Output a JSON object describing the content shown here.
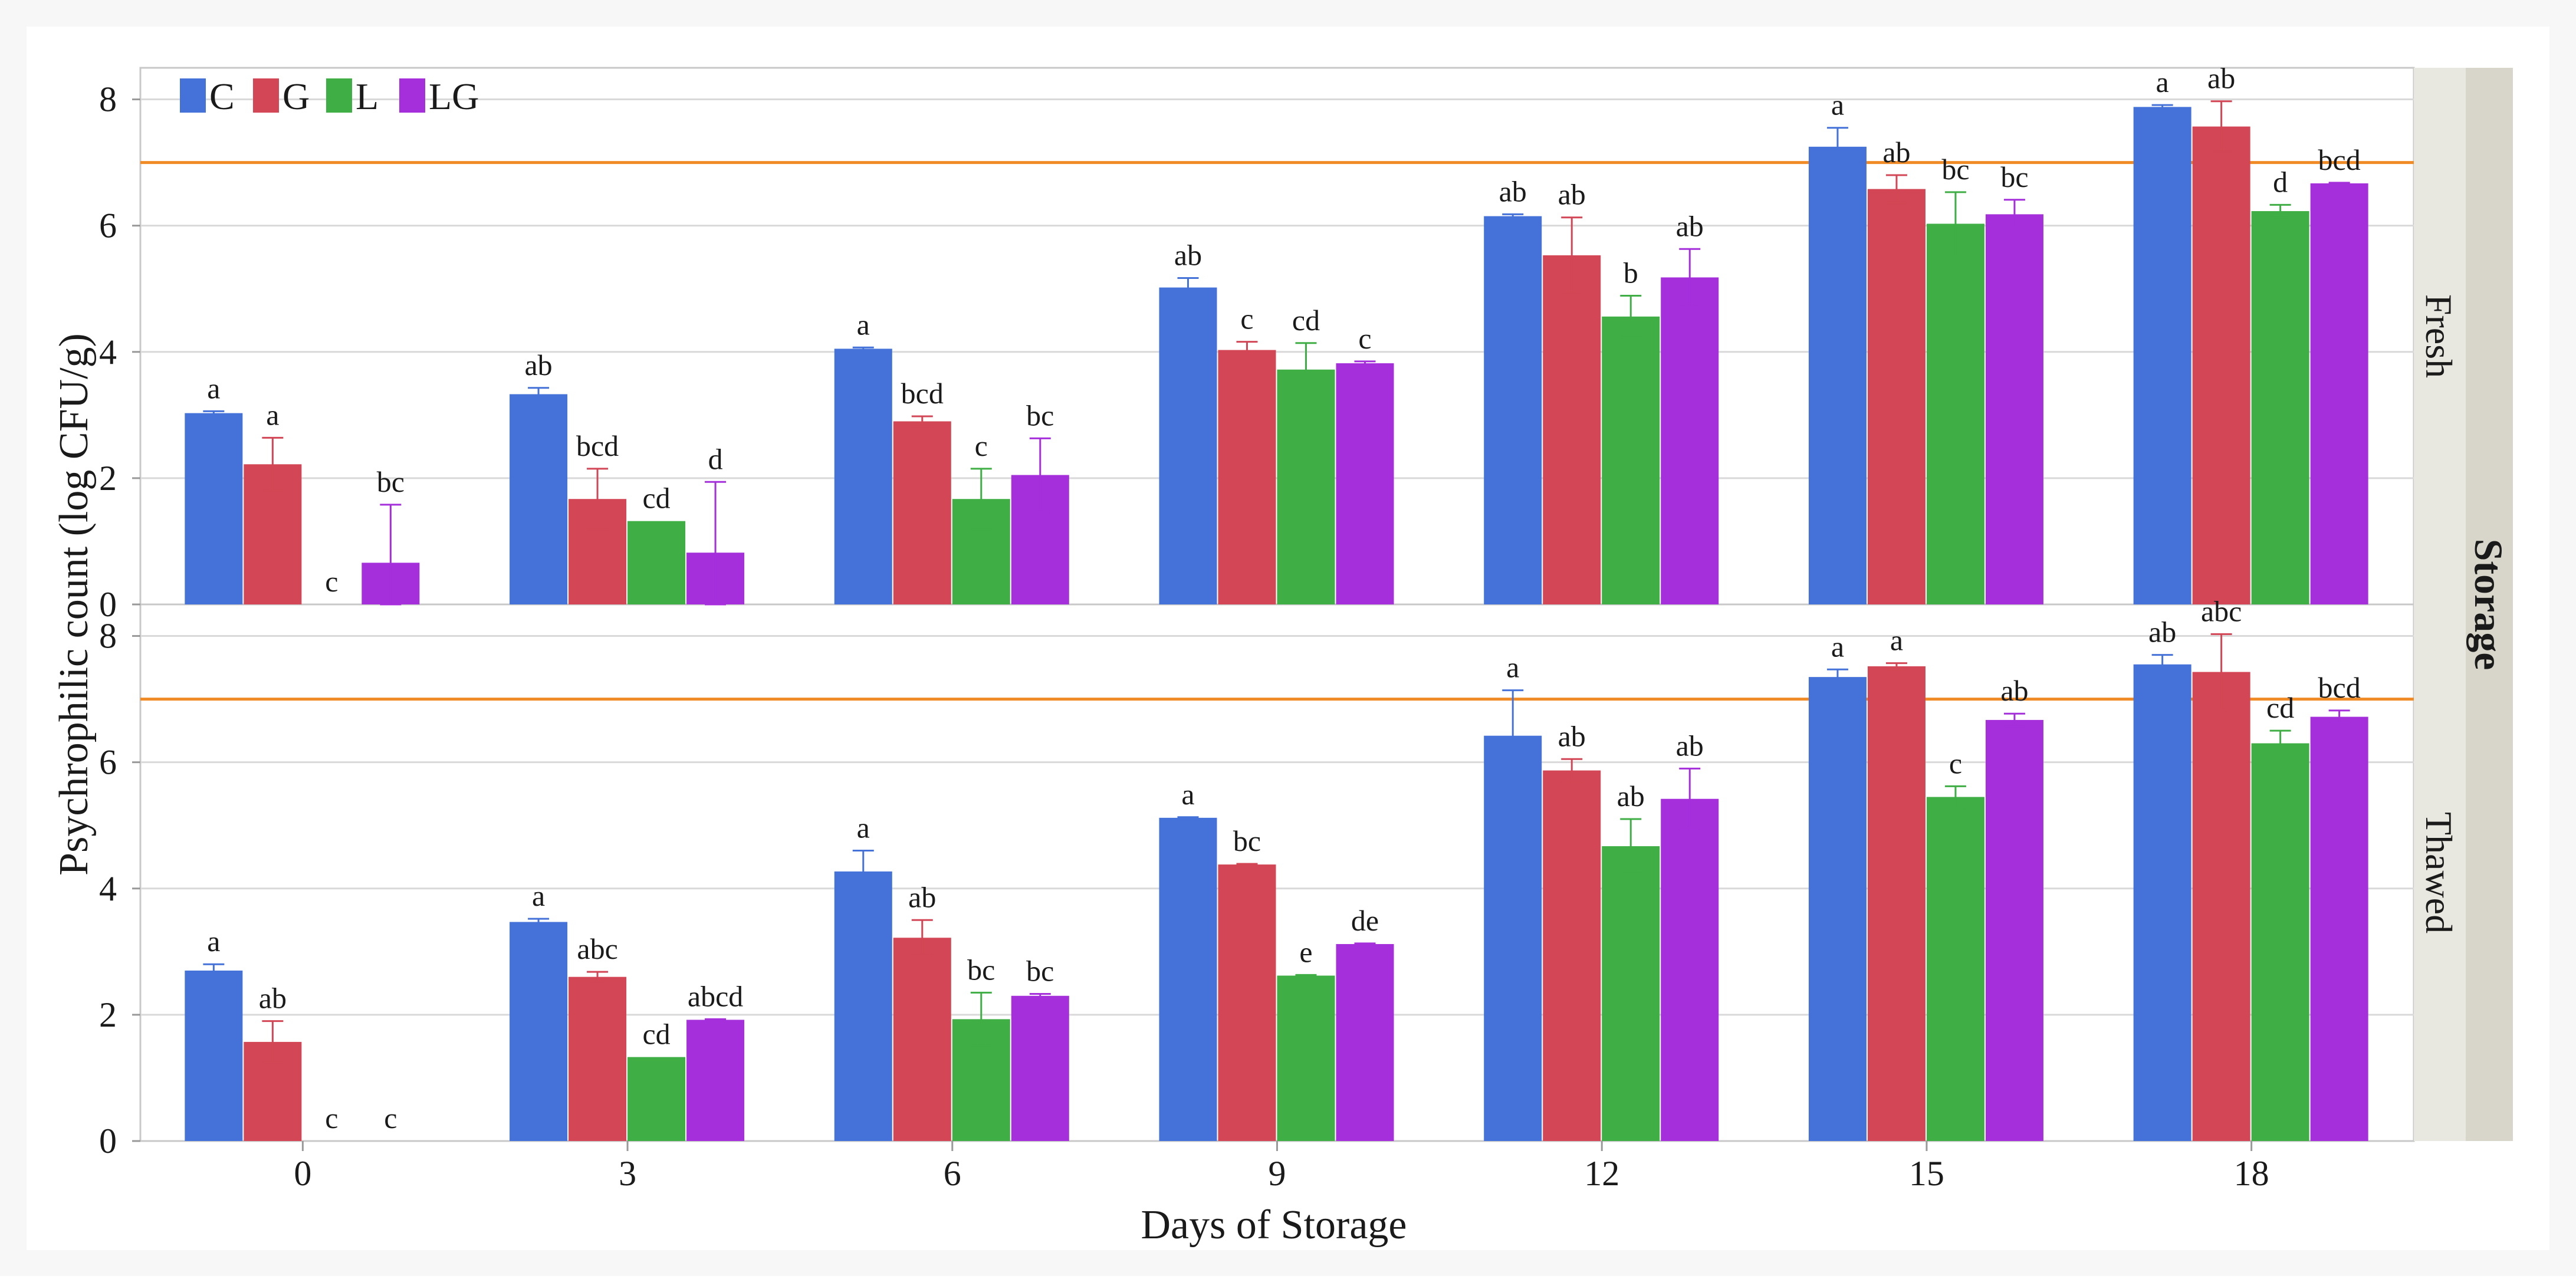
{
  "chart_data": {
    "type": "bar",
    "xlabel": "Days of Storage",
    "ylabel": "Psychrophilic count (log CFU/g)",
    "strip_title": "Storage",
    "categories": [
      "0",
      "3",
      "6",
      "9",
      "12",
      "15",
      "18"
    ],
    "ylim": [
      0,
      8.5
    ],
    "yticks": [
      0,
      2,
      4,
      6,
      8
    ],
    "reference_line": 7,
    "grid": true,
    "legend_position": "top-left",
    "series": [
      {
        "name": "C",
        "color": "#4472d9"
      },
      {
        "name": "G",
        "color": "#d24655"
      },
      {
        "name": "L",
        "color": "#3fae44"
      },
      {
        "name": "LG",
        "color": "#a42fdb"
      }
    ],
    "panels": [
      {
        "label": "Fresh",
        "values": {
          "C": [
            3.03,
            3.33,
            4.05,
            5.02,
            6.15,
            7.25,
            7.88
          ],
          "G": [
            2.22,
            1.67,
            2.9,
            4.03,
            5.53,
            6.58,
            7.57
          ],
          "L": [
            0.0,
            1.32,
            1.67,
            3.72,
            4.56,
            6.03,
            6.23
          ],
          "LG": [
            0.66,
            0.82,
            2.05,
            3.82,
            5.18,
            6.18,
            6.67
          ]
        },
        "errors": {
          "C": [
            0.03,
            0.1,
            0.02,
            0.15,
            0.03,
            0.3,
            0.03
          ],
          "G": [
            0.42,
            0.48,
            0.08,
            0.13,
            0.6,
            0.22,
            0.4
          ],
          "L": [
            0.0,
            0.0,
            0.48,
            0.42,
            0.33,
            0.5,
            0.1
          ],
          "LG": [
            0.92,
            1.12,
            0.58,
            0.03,
            0.45,
            0.23,
            0.01
          ]
        },
        "letters": {
          "C": [
            "a",
            "ab",
            "a",
            "ab",
            "ab",
            "a",
            "a"
          ],
          "G": [
            "a",
            "bcd",
            "bcd",
            "c",
            "ab",
            "ab",
            "ab"
          ],
          "L": [
            "c",
            "cd",
            "c",
            "cd",
            "b",
            "bc",
            "d"
          ],
          "LG": [
            "bc",
            "d",
            "bc",
            "c",
            "ab",
            "bc",
            "bcd"
          ]
        }
      },
      {
        "label": "Thawed",
        "values": {
          "C": [
            2.7,
            3.47,
            4.27,
            5.12,
            6.42,
            7.35,
            7.55
          ],
          "G": [
            1.57,
            2.6,
            3.22,
            4.38,
            5.87,
            7.52,
            7.43
          ],
          "L": [
            0.0,
            1.33,
            1.93,
            2.62,
            4.67,
            5.45,
            6.3
          ],
          "LG": [
            0.0,
            1.92,
            2.3,
            3.12,
            5.42,
            6.67,
            6.72
          ]
        },
        "errors": {
          "C": [
            0.1,
            0.05,
            0.33,
            0.01,
            0.72,
            0.12,
            0.15
          ],
          "G": [
            0.33,
            0.08,
            0.28,
            0.01,
            0.18,
            0.05,
            0.6
          ],
          "L": [
            0.0,
            0.0,
            0.42,
            0.01,
            0.43,
            0.17,
            0.2
          ],
          "LG": [
            0.0,
            0.01,
            0.03,
            0.01,
            0.48,
            0.1,
            0.1
          ]
        },
        "letters": {
          "C": [
            "a",
            "a",
            "a",
            "a",
            "a",
            "a",
            "ab"
          ],
          "G": [
            "ab",
            "abc",
            "ab",
            "bc",
            "ab",
            "a",
            "abc"
          ],
          "L": [
            "c",
            "cd",
            "bc",
            "e",
            "ab",
            "c",
            "cd"
          ],
          "LG": [
            "c",
            "abcd",
            "bc",
            "de",
            "ab",
            "ab",
            "bcd"
          ]
        }
      }
    ]
  }
}
